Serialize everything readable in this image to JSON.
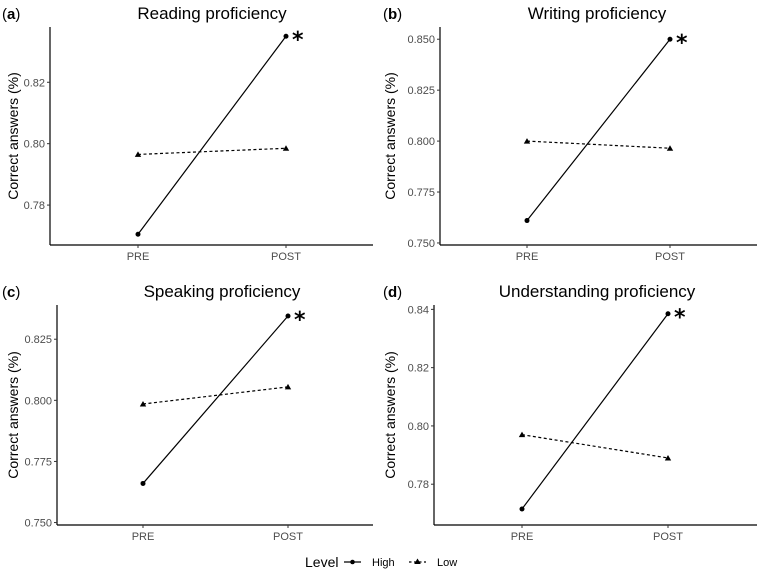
{
  "chart_data": [
    {
      "type": "line",
      "panel": "(a)",
      "title": "Reading proficiency",
      "xlabel": "",
      "ylabel": "Correct answers (%)",
      "categories": [
        "PRE",
        "POST"
      ],
      "yticks": [
        0.78,
        0.8,
        0.82
      ],
      "ytick_labels": [
        "0.78",
        "0.80",
        "0.82"
      ],
      "ylim": [
        0.767,
        0.838
      ],
      "series": [
        {
          "name": "High",
          "values": [
            0.7705,
            0.835
          ],
          "line": "solid",
          "marker": "circle"
        },
        {
          "name": "Low",
          "values": [
            0.7965,
            0.7985
          ],
          "line": "dashed",
          "marker": "triangle"
        }
      ],
      "annotations": [
        {
          "text": "*",
          "at": "High POST"
        }
      ],
      "grid": false
    },
    {
      "type": "line",
      "panel": "(b)",
      "title": "Writing proficiency",
      "xlabel": "",
      "ylabel": "Correct answers (%)",
      "categories": [
        "PRE",
        "POST"
      ],
      "yticks": [
        0.75,
        0.775,
        0.8,
        0.825,
        0.85
      ],
      "ytick_labels": [
        "0.750",
        "0.775",
        "0.800",
        "0.825",
        "0.850"
      ],
      "ylim": [
        0.749,
        0.856
      ],
      "series": [
        {
          "name": "High",
          "values": [
            0.761,
            0.85
          ],
          "line": "solid",
          "marker": "circle"
        },
        {
          "name": "Low",
          "values": [
            0.8,
            0.7965
          ],
          "line": "dashed",
          "marker": "triangle"
        }
      ],
      "annotations": [
        {
          "text": "*",
          "at": "High POST"
        }
      ],
      "grid": false
    },
    {
      "type": "line",
      "panel": "(c)",
      "title": "Speaking proficiency",
      "xlabel": "",
      "ylabel": "Correct answers (%)",
      "categories": [
        "PRE",
        "POST"
      ],
      "yticks": [
        0.75,
        0.775,
        0.8,
        0.825
      ],
      "ytick_labels": [
        "0.750",
        "0.775",
        "0.800",
        "0.825"
      ],
      "ylim": [
        0.749,
        0.839
      ],
      "series": [
        {
          "name": "High",
          "values": [
            0.766,
            0.8345
          ],
          "line": "solid",
          "marker": "circle"
        },
        {
          "name": "Low",
          "values": [
            0.7985,
            0.8055
          ],
          "line": "dashed",
          "marker": "triangle"
        }
      ],
      "annotations": [
        {
          "text": "*",
          "at": "High POST"
        }
      ],
      "grid": false
    },
    {
      "type": "line",
      "panel": "(d)",
      "title": "Understanding proficiency",
      "xlabel": "",
      "ylabel": "Correct answers (%)",
      "categories": [
        "PRE",
        "POST"
      ],
      "yticks": [
        0.78,
        0.8,
        0.82,
        0.84
      ],
      "ytick_labels": [
        "0.78",
        "0.80",
        "0.82",
        "0.84"
      ],
      "ylim": [
        0.766,
        0.8415
      ],
      "series": [
        {
          "name": "High",
          "values": [
            0.7715,
            0.8385
          ],
          "line": "solid",
          "marker": "circle"
        },
        {
          "name": "Low",
          "values": [
            0.797,
            0.789
          ],
          "line": "dashed",
          "marker": "triangle"
        }
      ],
      "annotations": [
        {
          "text": "*",
          "at": "High POST"
        }
      ],
      "grid": false
    }
  ],
  "legend": {
    "title": "Level",
    "items": [
      {
        "label": "High",
        "line": "solid",
        "marker": "circle"
      },
      {
        "label": "Low",
        "line": "dashed",
        "marker": "triangle"
      }
    ],
    "position": "bottom"
  },
  "colors": {
    "line": "#000000",
    "axis": "#000000",
    "tick_text": "#4d4d4d",
    "background": "#ffffff"
  }
}
